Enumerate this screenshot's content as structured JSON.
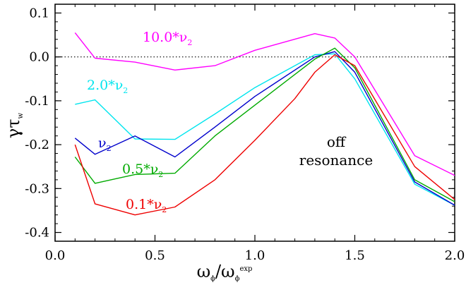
{
  "chart_data": {
    "type": "line",
    "xlim": [
      0.0,
      2.0
    ],
    "ylim": [
      -0.42,
      0.12
    ],
    "x_ticks": [
      "0.0",
      "0.5",
      "1.0",
      "1.5",
      "2.0"
    ],
    "y_ticks": [
      "0.1",
      "0.0",
      "-0.1",
      "-0.2",
      "-0.3",
      "-0.4"
    ],
    "xlabel": {
      "main": "ω",
      "sub": "ϕ",
      "mid": "/ω",
      "sub2": "ϕ",
      "sup": "exp"
    },
    "ylabel": {
      "main": "γτ",
      "sub": "w"
    },
    "reference_line": {
      "y": 0.0,
      "style": "dotted"
    },
    "grid": false,
    "series": [
      {
        "name": "10.0*ν2",
        "label_main": "10.0*ν",
        "label_sub": "2",
        "color": "#ff00ff",
        "x": [
          0.1,
          0.2,
          0.4,
          0.6,
          0.8,
          1.0,
          1.3,
          1.4,
          1.5,
          1.8,
          2.0
        ],
        "y": [
          0.055,
          -0.003,
          -0.012,
          -0.03,
          -0.02,
          0.015,
          0.053,
          0.043,
          0.0,
          -0.225,
          -0.27
        ]
      },
      {
        "name": "2.0*ν2",
        "label_main": "2.0*ν",
        "label_sub": "2",
        "color": "#00e5ee",
        "x": [
          0.1,
          0.2,
          0.4,
          0.6,
          0.8,
          1.0,
          1.3,
          1.4,
          1.5,
          1.8,
          2.0
        ],
        "y": [
          -0.108,
          -0.098,
          -0.187,
          -0.188,
          -0.13,
          -0.07,
          0.005,
          0.007,
          -0.05,
          -0.29,
          -0.338
        ]
      },
      {
        "name": "ν2",
        "label_main": "ν",
        "label_sub": "2",
        "color": "#0000cc",
        "x": [
          0.1,
          0.2,
          0.4,
          0.6,
          0.8,
          1.0,
          1.3,
          1.4,
          1.5,
          1.8,
          2.0
        ],
        "y": [
          -0.185,
          -0.222,
          -0.18,
          -0.228,
          -0.16,
          -0.09,
          0.0,
          0.012,
          -0.035,
          -0.285,
          -0.338
        ]
      },
      {
        "name": "0.5*ν2",
        "label_main": "0.5*ν",
        "label_sub": "2",
        "color": "#00aa00",
        "x": [
          0.1,
          0.2,
          0.4,
          0.6,
          0.8,
          1.0,
          1.3,
          1.4,
          1.5,
          1.8,
          2.0
        ],
        "y": [
          -0.228,
          -0.288,
          -0.268,
          -0.265,
          -0.18,
          -0.11,
          -0.005,
          0.02,
          -0.025,
          -0.28,
          -0.33
        ]
      },
      {
        "name": "0.1*ν2",
        "label_main": "0.1*ν",
        "label_sub": "2",
        "color": "#ee0000",
        "x": [
          0.1,
          0.2,
          0.4,
          0.6,
          0.8,
          1.0,
          1.2,
          1.3,
          1.4,
          1.5,
          1.8,
          2.0
        ],
        "y": [
          -0.2,
          -0.335,
          -0.36,
          -0.342,
          -0.28,
          -0.19,
          -0.095,
          -0.035,
          0.005,
          -0.02,
          -0.25,
          -0.325
        ]
      }
    ],
    "annotation": {
      "line1": "off",
      "line2": "resonance"
    }
  }
}
